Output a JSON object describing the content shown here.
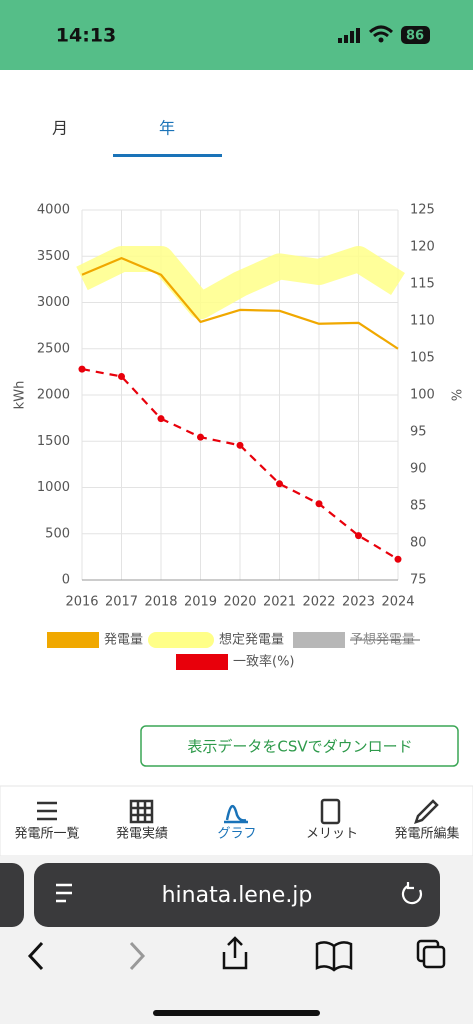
{
  "status_bar": {
    "time": "14:13",
    "battery": "86"
  },
  "tabs": [
    "月",
    "年"
  ],
  "chart_data": {
    "type": "line",
    "categories": [
      "2016",
      "2017",
      "2018",
      "2019",
      "2020",
      "2021",
      "2022",
      "2023",
      "2024"
    ],
    "y_label": "kWh",
    "y2_label": "%",
    "ylim": [
      0,
      4000
    ],
    "yticks": [
      0,
      500,
      1000,
      1500,
      2000,
      2500,
      3000,
      3500,
      4000
    ],
    "y2lim": [
      75,
      125
    ],
    "y2ticks": [
      75,
      80,
      85,
      90,
      95,
      100,
      105,
      110,
      115,
      120,
      125
    ],
    "grid": true,
    "series": [
      {
        "name": "発電量",
        "color": "#f0a800",
        "values": [
          3300,
          3480,
          3300,
          2790,
          2920,
          2910,
          2770,
          2780,
          2500
        ]
      },
      {
        "name": "想定発電量",
        "color": "#ffff88",
        "values": [
          3260,
          3470,
          3470,
          2960,
          3200,
          3390,
          3330,
          3470,
          3200
        ]
      },
      {
        "name": "予想発電量",
        "color": "#999999",
        "hidden": true,
        "values": [
          null,
          null,
          null,
          null,
          null,
          null,
          null,
          null,
          null
        ]
      },
      {
        "name": "一致率(%)",
        "color": "#e8000b",
        "axis": "y2",
        "dashed": true,
        "values": [
          103.5,
          102.5,
          96.8,
          94.3,
          93.2,
          88.0,
          85.3,
          81.0,
          77.8
        ]
      }
    ]
  },
  "download_button": "表示データをCSVでダウンロード",
  "nav": [
    "発電所一覧",
    "発電実績",
    "グラフ",
    "メリット",
    "発電所編集"
  ],
  "browser": {
    "url": "hinata.lene.jp"
  }
}
